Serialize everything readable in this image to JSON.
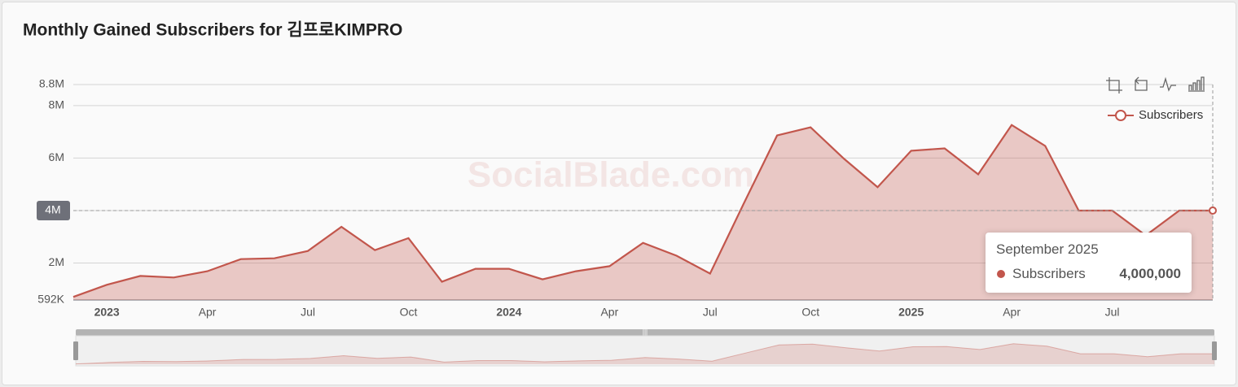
{
  "chart_data": {
    "type": "area",
    "title": "Monthly Gained Subscribers for 김프로KIMPRO",
    "watermark": "SocialBlade.com",
    "categories": [
      null,
      "2023",
      null,
      null,
      "Apr",
      null,
      null,
      "Jul",
      null,
      null,
      "Oct",
      null,
      null,
      "2024",
      null,
      null,
      "Apr",
      null,
      null,
      "Jul",
      null,
      null,
      "Oct",
      null,
      null,
      "2025",
      null,
      null,
      "Apr",
      null,
      null,
      "Jul",
      null,
      null,
      null
    ],
    "bold_categories": [
      "2023",
      "2024",
      "2025"
    ],
    "series": [
      {
        "name": "Subscribers",
        "color": "#c2564c",
        "values": [
          710000,
          1170000,
          1510000,
          1450000,
          1690000,
          2150000,
          2180000,
          2460000,
          3380000,
          2490000,
          2950000,
          1290000,
          1780000,
          1780000,
          1380000,
          1690000,
          1880000,
          2770000,
          2280000,
          1600000,
          4250000,
          6860000,
          7170000,
          5970000,
          4890000,
          6280000,
          6370000,
          5380000,
          7260000,
          6460000,
          4000000,
          4000000,
          3050000,
          4000000,
          4000000
        ]
      }
    ],
    "ylim": [
      592000,
      8800000
    ],
    "yticks": [
      {
        "value": 592000,
        "label": "592K"
      },
      {
        "value": 2000000,
        "label": "2M"
      },
      {
        "value": 4000000,
        "label": "4M"
      },
      {
        "value": 6000000,
        "label": "6M"
      },
      {
        "value": 8000000,
        "label": "8M"
      },
      {
        "value": 8800000,
        "label": "8.8M"
      }
    ],
    "grid": true,
    "legend": "top-right",
    "pointer_index": 34,
    "tooltip": {
      "title": "September 2025",
      "value_label": "4,000,000"
    }
  }
}
